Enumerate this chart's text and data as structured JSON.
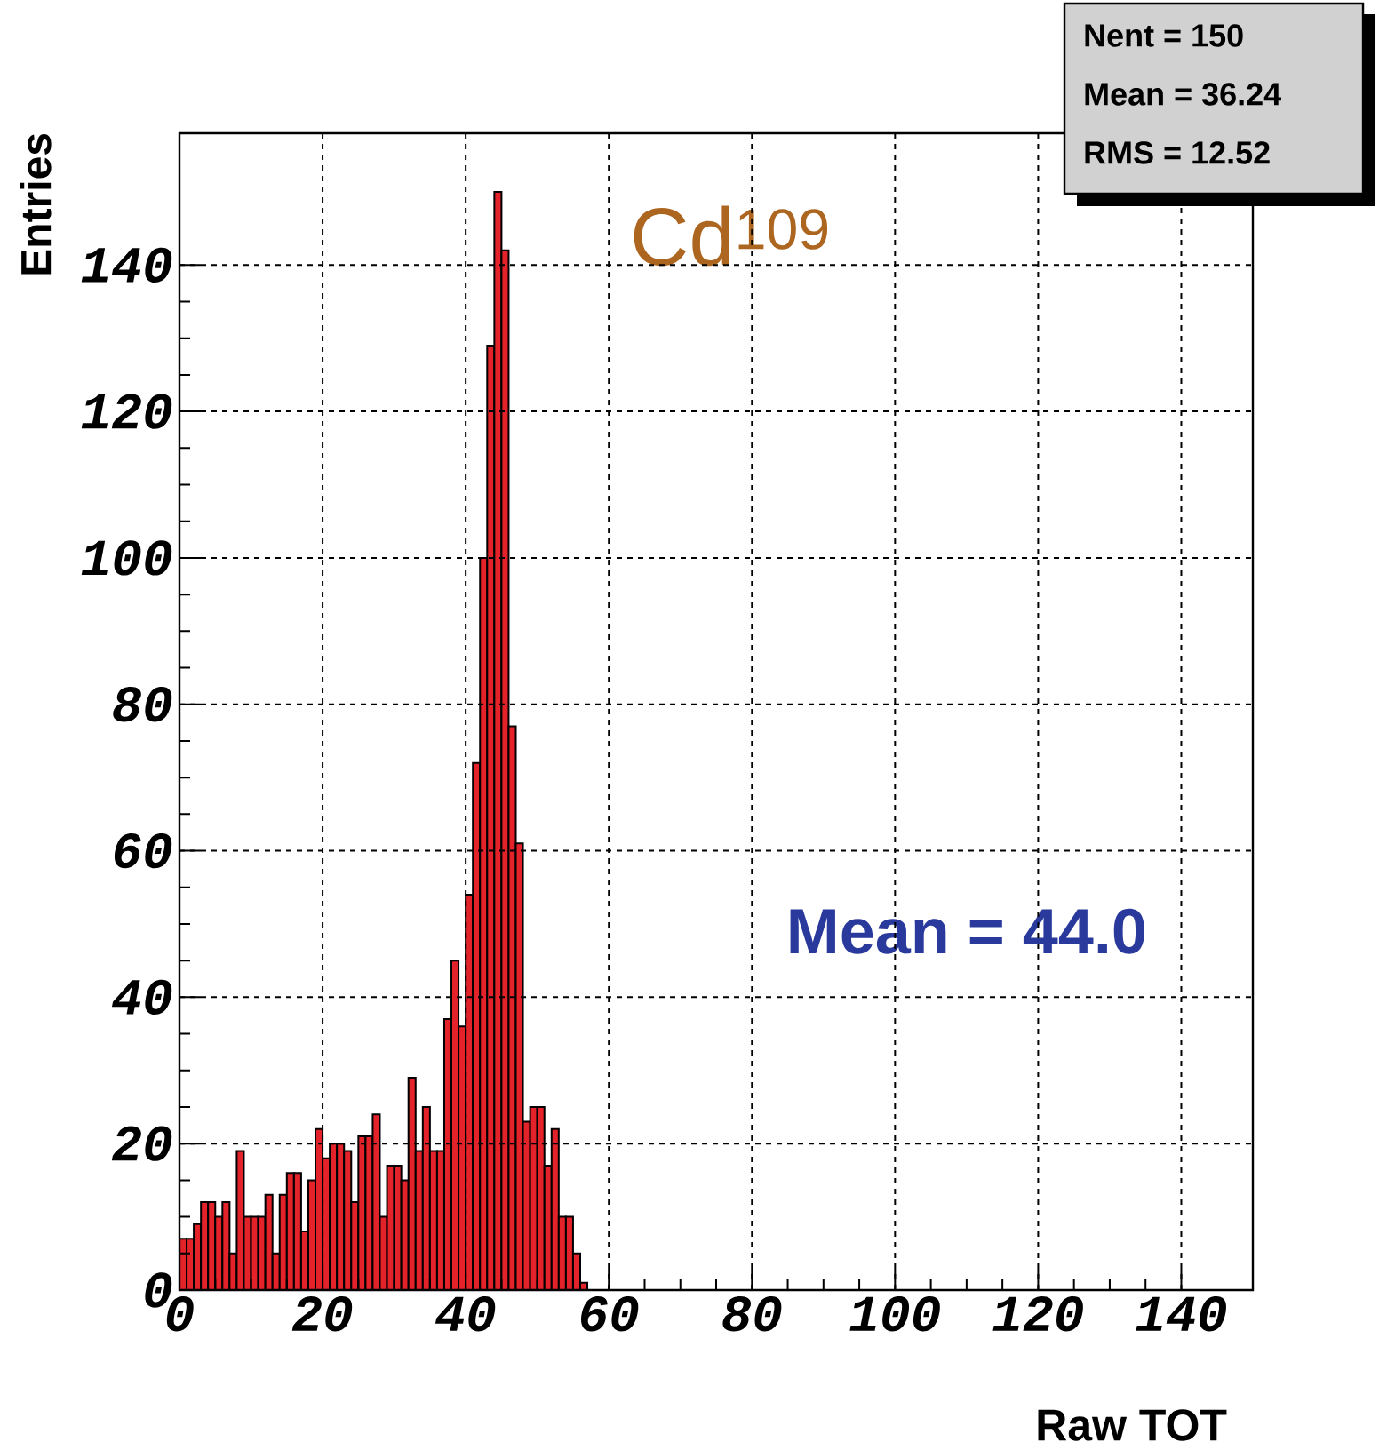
{
  "chart_data": {
    "type": "histogram",
    "xlabel": "Raw TOT",
    "ylabel": "Entries",
    "annotations": [
      "Cd$^{109}$",
      "Mean = 44.0",
      "Nent = 150",
      "Mean  =  36.24",
      "RMS   =  12.52"
    ],
    "bins": [
      0,
      1,
      2,
      3,
      4,
      5,
      6,
      7,
      8,
      9,
      10,
      11,
      12,
      13,
      14,
      15,
      16,
      17,
      18,
      19,
      20,
      21,
      22,
      23,
      24,
      25,
      26,
      27,
      28,
      29,
      30,
      31,
      32,
      33,
      34,
      35,
      36,
      37,
      38,
      39,
      40,
      41,
      42,
      43,
      44,
      45,
      46,
      47,
      48,
      49,
      50,
      51,
      52,
      53,
      54,
      55,
      56,
      57
    ],
    "values": [
      7,
      7,
      9,
      12,
      12,
      10,
      12,
      5,
      19,
      10,
      10,
      10,
      13,
      5,
      13,
      16,
      16,
      8,
      15,
      22,
      18,
      20,
      20,
      19,
      12,
      21,
      21,
      24,
      10,
      17,
      17,
      15,
      29,
      19,
      25,
      19,
      19,
      37,
      45,
      36,
      54,
      72,
      100,
      129,
      150,
      142,
      77,
      61,
      23,
      25,
      25,
      17,
      22,
      10,
      10,
      5,
      1
    ],
    "color": "#e4222a",
    "xlim": [
      0,
      150
    ],
    "ylim": [
      0,
      158
    ],
    "xticks": [
      0,
      20,
      40,
      60,
      80,
      100,
      120,
      140
    ],
    "yticks": [
      0,
      20,
      40,
      60,
      80,
      100,
      120,
      140
    ],
    "grid": true
  }
}
